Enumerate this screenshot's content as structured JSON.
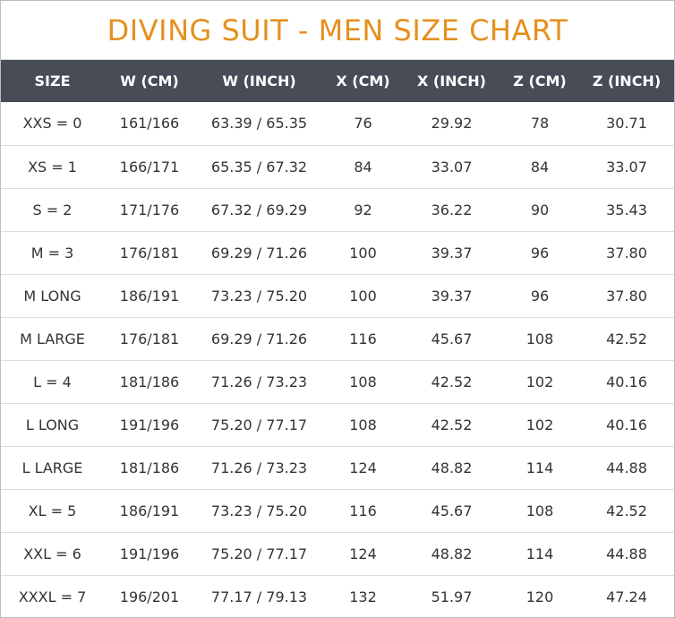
{
  "title": "DIVING SUIT - MEN SIZE CHART",
  "colors": {
    "title": "#e5901f",
    "header_background": "#474c57",
    "header_text": "#ffffff",
    "row_divider": "#dcdcdc"
  },
  "headers": [
    "SIZE",
    "W (CM)",
    "W (INCH)",
    "X (CM)",
    "X (INCH)",
    "Z (CM)",
    "Z (INCH)"
  ],
  "rows": [
    [
      "XXS = 0",
      "161/166",
      "63.39 / 65.35",
      "76",
      "29.92",
      "78",
      "30.71"
    ],
    [
      "XS = 1",
      "166/171",
      "65.35 / 67.32",
      "84",
      "33.07",
      "84",
      "33.07"
    ],
    [
      "S = 2",
      "171/176",
      "67.32 / 69.29",
      "92",
      "36.22",
      "90",
      "35.43"
    ],
    [
      "M = 3",
      "176/181",
      "69.29 / 71.26",
      "100",
      "39.37",
      "96",
      "37.80"
    ],
    [
      "M LONG",
      "186/191",
      "73.23 / 75.20",
      "100",
      "39.37",
      "96",
      "37.80"
    ],
    [
      "M LARGE",
      "176/181",
      "69.29 / 71.26",
      "116",
      "45.67",
      "108",
      "42.52"
    ],
    [
      "L = 4",
      "181/186",
      "71.26 / 73.23",
      "108",
      "42.52",
      "102",
      "40.16"
    ],
    [
      "L LONG",
      "191/196",
      "75.20 / 77.17",
      "108",
      "42.52",
      "102",
      "40.16"
    ],
    [
      "L LARGE",
      "181/186",
      "71.26 / 73.23",
      "124",
      "48.82",
      "114",
      "44.88"
    ],
    [
      "XL = 5",
      "186/191",
      "73.23 / 75.20",
      "116",
      "45.67",
      "108",
      "42.52"
    ],
    [
      "XXL = 6",
      "191/196",
      "75.20 / 77.17",
      "124",
      "48.82",
      "114",
      "44.88"
    ],
    [
      "XXXL = 7",
      "196/201",
      "77.17 / 79.13",
      "132",
      "51.97",
      "120",
      "47.24"
    ]
  ]
}
